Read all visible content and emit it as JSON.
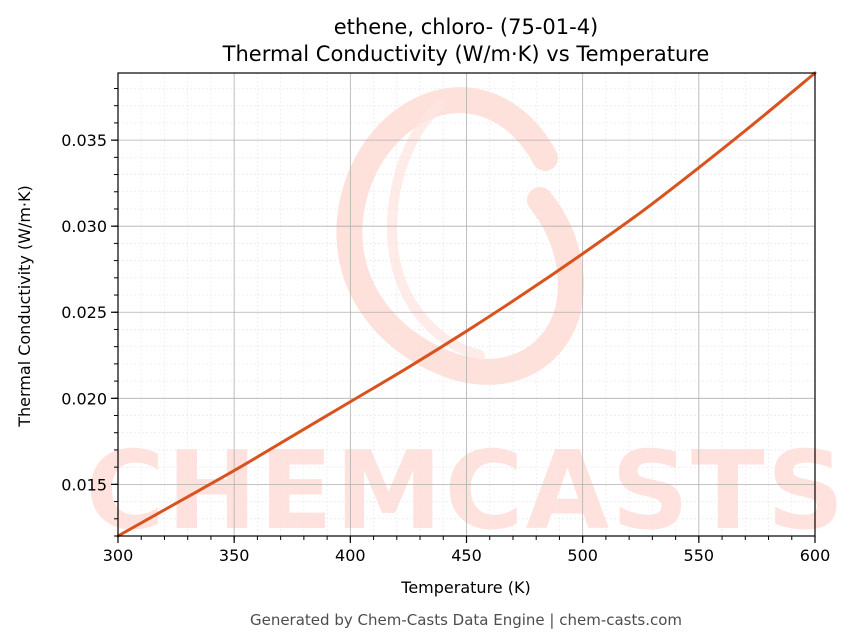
{
  "chart_data": {
    "type": "line",
    "title": "ethene, chloro- (75-01-4)",
    "subtitle": "Thermal Conductivity (W/m·K) vs Temperature",
    "xlabel": "Temperature (K)",
    "ylabel": "Thermal Conductivity (W/m·K)",
    "xlim": [
      300,
      600
    ],
    "ylim": [
      0.012,
      0.0389
    ],
    "xticks": [
      300,
      350,
      400,
      450,
      500,
      550,
      600
    ],
    "yticks": [
      0.015,
      0.02,
      0.025,
      0.03,
      0.035
    ],
    "ytick_labels": [
      "0.015",
      "0.020",
      "0.025",
      "0.030",
      "0.035"
    ],
    "grid": true,
    "series": [
      {
        "color": "#d9531e",
        "x": [
          300,
          325,
          350,
          375,
          400,
          425,
          450,
          475,
          500,
          525,
          550,
          575,
          600
        ],
        "y": [
          0.012,
          0.0139,
          0.0158,
          0.0178,
          0.0198,
          0.0218,
          0.0239,
          0.0261,
          0.0284,
          0.0308,
          0.0334,
          0.0361,
          0.0389
        ]
      }
    ]
  },
  "watermark": {
    "text": "CHEMCASTS",
    "color": "#ffd9d2"
  },
  "footer": {
    "text": "Generated by Chem-Casts Data Engine | chem-casts.com"
  }
}
